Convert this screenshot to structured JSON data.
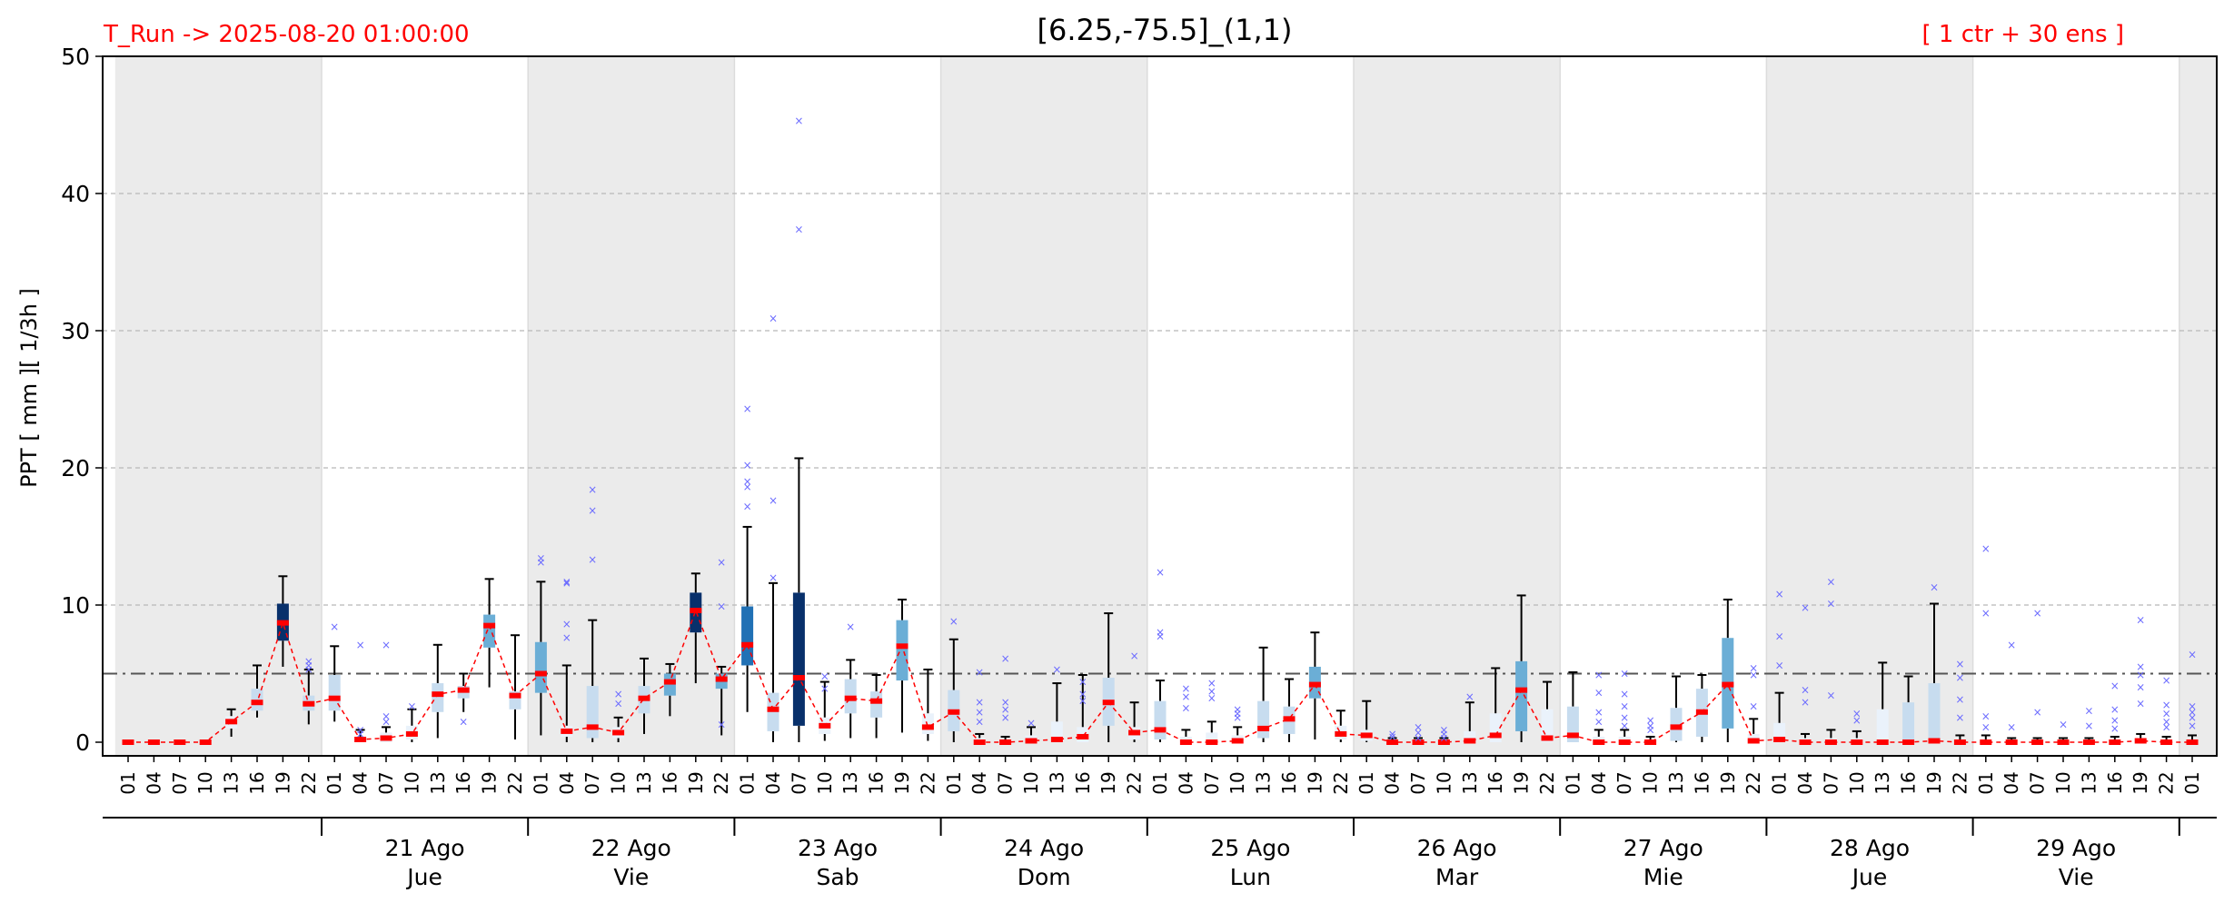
{
  "header": {
    "left_label": "T_Run -> 2025-08-20  01:00:00",
    "center_title": "[6.25,-75.5]_(1,1)",
    "right_label": "[ 1 ctr + 30 ens ]"
  },
  "colors": {
    "header_red": "#ff0000",
    "night_shade": "#ebebeb",
    "median_red": "#ff0000",
    "outlier_blue": "#6b6bff",
    "threshold_line": "#555555",
    "box_levels": [
      "#eaf2fb",
      "#c7dcef",
      "#6baed6",
      "#2171b5",
      "#08306b"
    ]
  },
  "chart_data": {
    "type": "box",
    "title": "[6.25,-75.5]_(1,1)",
    "ylabel": "PPT  [ mm ][ 1/3h ]",
    "ylim": [
      0,
      50
    ],
    "yticks": [
      0,
      10,
      20,
      30,
      40,
      50
    ],
    "threshold": 5,
    "grid": "horizontal dashed",
    "hour_labels": [
      "01",
      "04",
      "07",
      "10",
      "13",
      "16",
      "19",
      "22",
      "01",
      "04",
      "07",
      "10",
      "13",
      "16",
      "19",
      "22",
      "01",
      "04",
      "07",
      "10",
      "13",
      "16",
      "19",
      "22",
      "01",
      "04",
      "07",
      "10",
      "13",
      "16",
      "19",
      "22",
      "01",
      "04",
      "07",
      "10",
      "13",
      "16",
      "19",
      "22",
      "01",
      "04",
      "07",
      "10",
      "13",
      "16",
      "19",
      "22",
      "01",
      "04",
      "07",
      "10",
      "13",
      "16",
      "19",
      "22",
      "01",
      "04",
      "07",
      "10",
      "13",
      "16",
      "19",
      "22",
      "01",
      "04",
      "07",
      "10",
      "13",
      "16",
      "19",
      "22",
      "01",
      "04",
      "07",
      "10",
      "13",
      "16",
      "19",
      "22",
      "01"
    ],
    "days": [
      {
        "date": "21 Ago",
        "weekday": "Jue"
      },
      {
        "date": "22 Ago",
        "weekday": "Vie"
      },
      {
        "date": "23 Ago",
        "weekday": "Sab"
      },
      {
        "date": "24 Ago",
        "weekday": "Dom"
      },
      {
        "date": "25 Ago",
        "weekday": "Lun"
      },
      {
        "date": "26 Ago",
        "weekday": "Mar"
      },
      {
        "date": "27 Ago",
        "weekday": "Mie"
      },
      {
        "date": "28 Ago",
        "weekday": "Jue"
      },
      {
        "date": "29 Ago",
        "weekday": "Vie"
      }
    ],
    "box_levels_note": "fill shade increases with box upper quartile",
    "steps": [
      {
        "w": [
          0,
          0
        ],
        "q": [
          0,
          0
        ],
        "median": 0,
        "outliers": []
      },
      {
        "w": [
          0,
          0
        ],
        "q": [
          0,
          0
        ],
        "median": 0,
        "outliers": []
      },
      {
        "w": [
          0,
          0
        ],
        "q": [
          0,
          0
        ],
        "median": 0,
        "outliers": []
      },
      {
        "w": [
          0,
          0
        ],
        "q": [
          0,
          0
        ],
        "median": 0,
        "outliers": []
      },
      {
        "w": [
          0.4,
          2.4
        ],
        "q": [
          1.0,
          1.9
        ],
        "median": 1.5,
        "outliers": []
      },
      {
        "w": [
          1.8,
          5.6
        ],
        "q": [
          2.3,
          3.9
        ],
        "median": 2.9,
        "outliers": []
      },
      {
        "w": [
          5.5,
          12.1
        ],
        "q": [
          7.4,
          10.1
        ],
        "median": 8.7,
        "outliers": []
      },
      {
        "w": [
          1.3,
          5.3
        ],
        "q": [
          2.3,
          3.4
        ],
        "median": 2.8,
        "outliers": [
          5.9,
          5.6,
          5.3
        ]
      },
      {
        "w": [
          1.5,
          7.0
        ],
        "q": [
          2.3,
          4.9
        ],
        "median": 3.2,
        "outliers": [
          8.4
        ]
      },
      {
        "w": [
          0,
          0.9
        ],
        "q": [
          0,
          0.4
        ],
        "median": 0.2,
        "outliers": [
          7.1,
          0.9,
          0.6
        ]
      },
      {
        "w": [
          0,
          1.1
        ],
        "q": [
          0,
          0.7
        ],
        "median": 0.3,
        "outliers": [
          7.1,
          1.9,
          1.5
        ]
      },
      {
        "w": [
          0,
          2.4
        ],
        "q": [
          0.2,
          1.2
        ],
        "median": 0.6,
        "outliers": [
          2.6
        ]
      },
      {
        "w": [
          0.3,
          7.1
        ],
        "q": [
          2.2,
          4.3
        ],
        "median": 3.5,
        "outliers": []
      },
      {
        "w": [
          2.2,
          5.0
        ],
        "q": [
          3.2,
          4.1
        ],
        "median": 3.8,
        "outliers": [
          1.5
        ]
      },
      {
        "w": [
          4.0,
          11.9
        ],
        "q": [
          6.9,
          9.3
        ],
        "median": 8.5,
        "outliers": []
      },
      {
        "w": [
          0.2,
          7.8
        ],
        "q": [
          2.4,
          3.7
        ],
        "median": 3.4,
        "outliers": []
      },
      {
        "w": [
          0.5,
          11.7
        ],
        "q": [
          3.6,
          7.3
        ],
        "median": 5.0,
        "outliers": [
          13.4,
          13.1
        ]
      },
      {
        "w": [
          0,
          5.6
        ],
        "q": [
          0.4,
          1.2
        ],
        "median": 0.8,
        "outliers": [
          11.7,
          11.6,
          8.6,
          7.6
        ]
      },
      {
        "w": [
          0,
          8.9
        ],
        "q": [
          0.3,
          4.1
        ],
        "median": 1.1,
        "outliers": [
          18.4,
          16.9,
          13.3
        ]
      },
      {
        "w": [
          0,
          1.8
        ],
        "q": [
          0.3,
          1.1
        ],
        "median": 0.7,
        "outliers": [
          3.5,
          2.8
        ]
      },
      {
        "w": [
          0.6,
          6.1
        ],
        "q": [
          2.1,
          4.1
        ],
        "median": 3.2,
        "outliers": []
      },
      {
        "w": [
          1.9,
          5.7
        ],
        "q": [
          3.4,
          5.0
        ],
        "median": 4.4,
        "outliers": []
      },
      {
        "w": [
          4.3,
          12.3
        ],
        "q": [
          8.0,
          10.9
        ],
        "median": 9.6,
        "outliers": []
      },
      {
        "w": [
          0.5,
          5.5
        ],
        "q": [
          3.9,
          5.0
        ],
        "median": 4.6,
        "outliers": [
          13.1,
          9.9,
          1.3
        ]
      },
      {
        "w": [
          2.2,
          15.7
        ],
        "q": [
          5.6,
          9.9
        ],
        "median": 7.1,
        "outliers": [
          24.3,
          20.2,
          19.0,
          18.6,
          17.2
        ]
      },
      {
        "w": [
          0,
          11.6
        ],
        "q": [
          0.8,
          3.6
        ],
        "median": 2.4,
        "outliers": [
          30.9,
          17.6,
          12.0
        ]
      },
      {
        "w": [
          0,
          20.7
        ],
        "q": [
          1.2,
          10.9
        ],
        "median": 4.7,
        "outliers": [
          45.3,
          37.4
        ]
      },
      {
        "w": [
          0.1,
          4.4
        ],
        "q": [
          0.6,
          1.8
        ],
        "median": 1.2,
        "outliers": [
          4.8,
          3.9
        ]
      },
      {
        "w": [
          0.3,
          6.0
        ],
        "q": [
          2.1,
          4.6
        ],
        "median": 3.2,
        "outliers": [
          8.4
        ]
      },
      {
        "w": [
          0.3,
          4.9
        ],
        "q": [
          1.8,
          3.7
        ],
        "median": 3.0,
        "outliers": []
      },
      {
        "w": [
          0.7,
          10.4
        ],
        "q": [
          4.5,
          8.9
        ],
        "median": 7.0,
        "outliers": []
      },
      {
        "w": [
          0.1,
          5.3
        ],
        "q": [
          0.6,
          2.1
        ],
        "median": 1.1,
        "outliers": []
      },
      {
        "w": [
          0,
          7.5
        ],
        "q": [
          0.8,
          3.8
        ],
        "median": 2.2,
        "outliers": [
          8.8
        ]
      },
      {
        "w": [
          0,
          0.6
        ],
        "q": [
          0,
          0.3
        ],
        "median": 0,
        "outliers": [
          5.1,
          2.9,
          2.2,
          1.5
        ]
      },
      {
        "w": [
          0,
          0.4
        ],
        "q": [
          0,
          0.2
        ],
        "median": 0,
        "outliers": [
          6.1,
          2.9,
          2.4,
          1.8
        ]
      },
      {
        "w": [
          0,
          1.1
        ],
        "q": [
          0,
          0.5
        ],
        "median": 0.1,
        "outliers": [
          1.4
        ]
      },
      {
        "w": [
          0,
          4.3
        ],
        "q": [
          0,
          1.5
        ],
        "median": 0.2,
        "outliers": [
          5.3
        ]
      },
      {
        "w": [
          0,
          4.9
        ],
        "q": [
          0,
          1.1
        ],
        "median": 0.4,
        "outliers": [
          4.4,
          3.5,
          3.0
        ]
      },
      {
        "w": [
          0,
          9.4
        ],
        "q": [
          1.2,
          4.7
        ],
        "median": 2.9,
        "outliers": []
      },
      {
        "w": [
          0,
          2.9
        ],
        "q": [
          0.2,
          1.1
        ],
        "median": 0.7,
        "outliers": [
          6.3
        ]
      },
      {
        "w": [
          0,
          4.5
        ],
        "q": [
          0.2,
          3.0
        ],
        "median": 0.9,
        "outliers": [
          12.4,
          8.0,
          7.7
        ]
      },
      {
        "w": [
          0,
          0.9
        ],
        "q": [
          0,
          0.4
        ],
        "median": 0,
        "outliers": [
          3.9,
          3.3,
          2.5
        ]
      },
      {
        "w": [
          0,
          1.5
        ],
        "q": [
          0,
          0.7
        ],
        "median": 0,
        "outliers": [
          4.3,
          3.7,
          3.2
        ]
      },
      {
        "w": [
          0,
          1.1
        ],
        "q": [
          0,
          0.5
        ],
        "median": 0.1,
        "outliers": [
          2.4,
          2.1,
          1.8
        ]
      },
      {
        "w": [
          0,
          6.9
        ],
        "q": [
          0.3,
          3.0
        ],
        "median": 1.0,
        "outliers": []
      },
      {
        "w": [
          0,
          4.6
        ],
        "q": [
          0.6,
          2.6
        ],
        "median": 1.7,
        "outliers": []
      },
      {
        "w": [
          0.2,
          8.0
        ],
        "q": [
          3.2,
          5.5
        ],
        "median": 4.2,
        "outliers": []
      },
      {
        "w": [
          0,
          2.3
        ],
        "q": [
          0.2,
          1.2
        ],
        "median": 0.6,
        "outliers": []
      },
      {
        "w": [
          0,
          3.0
        ],
        "q": [
          0.1,
          0.9
        ],
        "median": 0.5,
        "outliers": []
      },
      {
        "w": [
          0,
          0.3
        ],
        "q": [
          0,
          0.1
        ],
        "median": 0,
        "outliers": [
          0.6,
          0.4
        ]
      },
      {
        "w": [
          0,
          0.3
        ],
        "q": [
          0,
          0.1
        ],
        "median": 0,
        "outliers": [
          1.1,
          0.7,
          0.3
        ]
      },
      {
        "w": [
          0,
          0.3
        ],
        "q": [
          0,
          0.1
        ],
        "median": 0,
        "outliers": [
          0.9,
          0.6,
          0.3
        ]
      },
      {
        "w": [
          0,
          2.9
        ],
        "q": [
          0,
          0.8
        ],
        "median": 0.1,
        "outliers": [
          3.3
        ]
      },
      {
        "w": [
          0,
          5.4
        ],
        "q": [
          0,
          2.1
        ],
        "median": 0.5,
        "outliers": []
      },
      {
        "w": [
          0,
          10.7
        ],
        "q": [
          0.8,
          5.9
        ],
        "median": 3.8,
        "outliers": []
      },
      {
        "w": [
          0,
          4.4
        ],
        "q": [
          0,
          2.4
        ],
        "median": 0.3,
        "outliers": []
      },
      {
        "w": [
          0,
          5.1
        ],
        "q": [
          0,
          2.6
        ],
        "median": 0.5,
        "outliers": []
      },
      {
        "w": [
          0,
          0.9
        ],
        "q": [
          0,
          0.4
        ],
        "median": 0,
        "outliers": [
          4.9,
          3.6,
          2.2,
          1.5
        ]
      },
      {
        "w": [
          0,
          0.9
        ],
        "q": [
          0,
          0.4
        ],
        "median": 0,
        "outliers": [
          5.0,
          3.5,
          2.6,
          1.8,
          1.2
        ]
      },
      {
        "w": [
          0,
          0.4
        ],
        "q": [
          0,
          0.2
        ],
        "median": 0,
        "outliers": [
          1.6,
          1.2,
          0.9
        ]
      },
      {
        "w": [
          0,
          4.8
        ],
        "q": [
          0.1,
          2.5
        ],
        "median": 1.1,
        "outliers": []
      },
      {
        "w": [
          0,
          4.9
        ],
        "q": [
          0.4,
          3.9
        ],
        "median": 2.2,
        "outliers": []
      },
      {
        "w": [
          0,
          10.4
        ],
        "q": [
          1.0,
          7.6
        ],
        "median": 4.2,
        "outliers": []
      },
      {
        "w": [
          0,
          1.7
        ],
        "q": [
          0,
          0.6
        ],
        "median": 0.1,
        "outliers": [
          5.4,
          4.9,
          2.6
        ]
      },
      {
        "w": [
          0,
          3.6
        ],
        "q": [
          0,
          1.4
        ],
        "median": 0.2,
        "outliers": [
          10.8,
          7.7,
          5.6
        ]
      },
      {
        "w": [
          0,
          0.6
        ],
        "q": [
          0,
          0.3
        ],
        "median": 0,
        "outliers": [
          9.8,
          3.8,
          2.9
        ]
      },
      {
        "w": [
          0,
          0.9
        ],
        "q": [
          0,
          0.3
        ],
        "median": 0,
        "outliers": [
          11.7,
          10.1,
          3.4
        ]
      },
      {
        "w": [
          0,
          0.8
        ],
        "q": [
          0,
          0.3
        ],
        "median": 0,
        "outliers": [
          2.1,
          1.6
        ]
      },
      {
        "w": [
          0,
          5.8
        ],
        "q": [
          0,
          2.4
        ],
        "median": 0,
        "outliers": []
      },
      {
        "w": [
          0,
          4.8
        ],
        "q": [
          0,
          2.9
        ],
        "median": 0,
        "outliers": []
      },
      {
        "w": [
          0,
          10.1
        ],
        "q": [
          0,
          4.3
        ],
        "median": 0.1,
        "outliers": [
          11.3
        ]
      },
      {
        "w": [
          0,
          0.5
        ],
        "q": [
          0,
          0.2
        ],
        "median": 0,
        "outliers": [
          5.7,
          4.7,
          3.1,
          1.8
        ]
      },
      {
        "w": [
          0,
          0.5
        ],
        "q": [
          0,
          0.2
        ],
        "median": 0,
        "outliers": [
          14.1,
          9.4,
          1.9,
          1.1
        ]
      },
      {
        "w": [
          0,
          0.3
        ],
        "q": [
          0,
          0.1
        ],
        "median": 0,
        "outliers": [
          7.1,
          1.1
        ]
      },
      {
        "w": [
          0,
          0.3
        ],
        "q": [
          0,
          0.1
        ],
        "median": 0,
        "outliers": [
          9.4,
          2.2
        ]
      },
      {
        "w": [
          0,
          0.3
        ],
        "q": [
          0,
          0.1
        ],
        "median": 0,
        "outliers": [
          1.3
        ]
      },
      {
        "w": [
          0,
          0.3
        ],
        "q": [
          0,
          0.1
        ],
        "median": 0,
        "outliers": [
          2.3,
          1.2
        ]
      },
      {
        "w": [
          0,
          0.4
        ],
        "q": [
          0,
          0.2
        ],
        "median": 0,
        "outliers": [
          4.1,
          2.4,
          1.6,
          1.0
        ]
      },
      {
        "w": [
          0,
          0.6
        ],
        "q": [
          0,
          0.3
        ],
        "median": 0.1,
        "outliers": [
          8.9,
          5.5,
          4.9,
          4.0,
          2.8
        ]
      },
      {
        "w": [
          0,
          0.4
        ],
        "q": [
          0,
          0.2
        ],
        "median": 0,
        "outliers": [
          4.5,
          2.7,
          2.1,
          1.5,
          1.1
        ]
      },
      {
        "w": [
          0,
          0.5
        ],
        "q": [
          0,
          0.2
        ],
        "median": 0,
        "outliers": [
          6.4,
          2.6,
          2.2,
          1.8,
          1.2
        ]
      }
    ]
  }
}
